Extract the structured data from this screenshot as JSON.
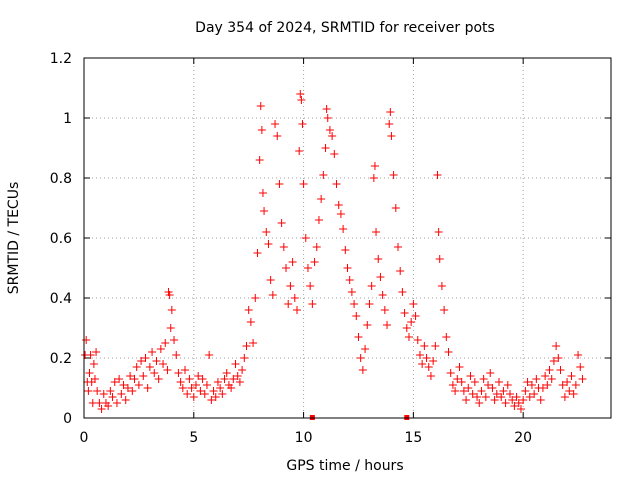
{
  "chart_data": {
    "type": "scatter",
    "title": "Day 354 of 2024, SRMTID for receiver pots",
    "xlabel": "GPS time / hours",
    "ylabel": "SRMTID / TECUs",
    "xlim": [
      0,
      24
    ],
    "ylim": [
      0,
      1.2
    ],
    "x_ticks": [
      0,
      5,
      10,
      15,
      20
    ],
    "x_tick_labels": [
      "0",
      "5",
      "10",
      "15",
      "20"
    ],
    "y_ticks": [
      0,
      0.2,
      0.4,
      0.6,
      0.8,
      1.0,
      1.2
    ],
    "y_tick_labels": [
      "0",
      "0.2",
      "0.4",
      "0.6",
      "0.8",
      "1",
      "1.2"
    ],
    "grid": true,
    "marker": "+",
    "series": [
      {
        "name": "SRMTID",
        "color": "#ff0000",
        "points": [
          [
            0.05,
            0.21
          ],
          [
            0.1,
            0.26
          ],
          [
            0.15,
            0.12
          ],
          [
            0.2,
            0.09
          ],
          [
            0.25,
            0.15
          ],
          [
            0.3,
            0.21
          ],
          [
            0.35,
            0.12
          ],
          [
            0.4,
            0.05
          ],
          [
            0.45,
            0.18
          ],
          [
            0.5,
            0.13
          ],
          [
            0.55,
            0.22
          ],
          [
            0.6,
            0.09
          ],
          [
            0.7,
            0.05
          ],
          [
            0.8,
            0.03
          ],
          [
            0.9,
            0.08
          ],
          [
            1.0,
            0.05
          ],
          [
            1.1,
            0.04
          ],
          [
            1.2,
            0.09
          ],
          [
            1.3,
            0.07
          ],
          [
            1.4,
            0.12
          ],
          [
            1.5,
            0.05
          ],
          [
            1.6,
            0.13
          ],
          [
            1.7,
            0.08
          ],
          [
            1.8,
            0.11
          ],
          [
            1.9,
            0.06
          ],
          [
            2.0,
            0.1
          ],
          [
            2.1,
            0.14
          ],
          [
            2.2,
            0.09
          ],
          [
            2.3,
            0.13
          ],
          [
            2.4,
            0.17
          ],
          [
            2.5,
            0.11
          ],
          [
            2.6,
            0.19
          ],
          [
            2.7,
            0.14
          ],
          [
            2.8,
            0.2
          ],
          [
            2.9,
            0.1
          ],
          [
            3.0,
            0.17
          ],
          [
            3.1,
            0.22
          ],
          [
            3.2,
            0.15
          ],
          [
            3.3,
            0.19
          ],
          [
            3.4,
            0.13
          ],
          [
            3.5,
            0.23
          ],
          [
            3.6,
            0.18
          ],
          [
            3.7,
            0.25
          ],
          [
            3.8,
            0.16
          ],
          [
            3.85,
            0.42
          ],
          [
            3.9,
            0.41
          ],
          [
            3.95,
            0.3
          ],
          [
            4.0,
            0.36
          ],
          [
            4.1,
            0.26
          ],
          [
            4.2,
            0.21
          ],
          [
            4.3,
            0.15
          ],
          [
            4.4,
            0.12
          ],
          [
            4.5,
            0.1
          ],
          [
            4.6,
            0.16
          ],
          [
            4.7,
            0.08
          ],
          [
            4.8,
            0.13
          ],
          [
            4.9,
            0.1
          ],
          [
            5.0,
            0.07
          ],
          [
            5.1,
            0.11
          ],
          [
            5.2,
            0.14
          ],
          [
            5.3,
            0.09
          ],
          [
            5.4,
            0.13
          ],
          [
            5.5,
            0.08
          ],
          [
            5.6,
            0.11
          ],
          [
            5.7,
            0.21
          ],
          [
            5.8,
            0.06
          ],
          [
            5.9,
            0.09
          ],
          [
            6.0,
            0.07
          ],
          [
            6.1,
            0.12
          ],
          [
            6.2,
            0.1
          ],
          [
            6.3,
            0.08
          ],
          [
            6.4,
            0.13
          ],
          [
            6.5,
            0.15
          ],
          [
            6.6,
            0.11
          ],
          [
            6.7,
            0.1
          ],
          [
            6.8,
            0.13
          ],
          [
            6.9,
            0.18
          ],
          [
            7.0,
            0.14
          ],
          [
            7.1,
            0.12
          ],
          [
            7.2,
            0.16
          ],
          [
            7.3,
            0.2
          ],
          [
            7.4,
            0.24
          ],
          [
            7.5,
            0.36
          ],
          [
            7.6,
            0.32
          ],
          [
            7.7,
            0.25
          ],
          [
            7.8,
            0.4
          ],
          [
            7.9,
            0.55
          ],
          [
            8.0,
            0.86
          ],
          [
            8.05,
            1.04
          ],
          [
            8.1,
            0.96
          ],
          [
            8.15,
            0.75
          ],
          [
            8.2,
            0.69
          ],
          [
            8.3,
            0.62
          ],
          [
            8.4,
            0.58
          ],
          [
            8.5,
            0.46
          ],
          [
            8.6,
            0.41
          ],
          [
            8.7,
            0.98
          ],
          [
            8.8,
            0.94
          ],
          [
            8.9,
            0.78
          ],
          [
            9.0,
            0.65
          ],
          [
            9.1,
            0.57
          ],
          [
            9.2,
            0.5
          ],
          [
            9.3,
            0.38
          ],
          [
            9.4,
            0.44
          ],
          [
            9.5,
            0.52
          ],
          [
            9.6,
            0.4
          ],
          [
            9.7,
            0.36
          ],
          [
            9.8,
            0.89
          ],
          [
            9.85,
            1.08
          ],
          [
            9.9,
            1.06
          ],
          [
            9.95,
            0.98
          ],
          [
            10.0,
            0.78
          ],
          [
            10.1,
            0.6
          ],
          [
            10.2,
            0.5
          ],
          [
            10.3,
            0.44
          ],
          [
            10.4,
            0.38
          ],
          [
            10.5,
            0.52
          ],
          [
            10.6,
            0.57
          ],
          [
            10.7,
            0.66
          ],
          [
            10.8,
            0.73
          ],
          [
            10.9,
            0.81
          ],
          [
            11.0,
            0.9
          ],
          [
            11.05,
            1.03
          ],
          [
            11.1,
            1.0
          ],
          [
            11.2,
            0.96
          ],
          [
            11.3,
            0.94
          ],
          [
            11.4,
            0.88
          ],
          [
            11.5,
            0.78
          ],
          [
            11.6,
            0.71
          ],
          [
            11.7,
            0.68
          ],
          [
            11.8,
            0.63
          ],
          [
            11.9,
            0.56
          ],
          [
            12.0,
            0.5
          ],
          [
            12.1,
            0.46
          ],
          [
            12.2,
            0.42
          ],
          [
            12.3,
            0.38
          ],
          [
            12.4,
            0.34
          ],
          [
            12.5,
            0.27
          ],
          [
            12.6,
            0.2
          ],
          [
            12.7,
            0.16
          ],
          [
            12.8,
            0.23
          ],
          [
            12.9,
            0.31
          ],
          [
            13.0,
            0.38
          ],
          [
            13.1,
            0.44
          ],
          [
            13.2,
            0.8
          ],
          [
            13.25,
            0.84
          ],
          [
            13.3,
            0.62
          ],
          [
            13.4,
            0.53
          ],
          [
            13.5,
            0.47
          ],
          [
            13.6,
            0.41
          ],
          [
            13.7,
            0.36
          ],
          [
            13.8,
            0.31
          ],
          [
            13.9,
            0.98
          ],
          [
            13.95,
            1.02
          ],
          [
            14.0,
            0.94
          ],
          [
            14.1,
            0.81
          ],
          [
            14.2,
            0.7
          ],
          [
            14.3,
            0.57
          ],
          [
            14.4,
            0.49
          ],
          [
            14.5,
            0.42
          ],
          [
            14.6,
            0.35
          ],
          [
            14.7,
            0.3
          ],
          [
            14.8,
            0.27
          ],
          [
            14.9,
            0.32
          ],
          [
            15.0,
            0.38
          ],
          [
            15.1,
            0.34
          ],
          [
            15.2,
            0.26
          ],
          [
            15.3,
            0.21
          ],
          [
            15.4,
            0.18
          ],
          [
            15.5,
            0.24
          ],
          [
            15.6,
            0.2
          ],
          [
            15.7,
            0.17
          ],
          [
            15.8,
            0.14
          ],
          [
            15.9,
            0.19
          ],
          [
            16.0,
            0.24
          ],
          [
            16.1,
            0.81
          ],
          [
            16.15,
            0.62
          ],
          [
            16.2,
            0.53
          ],
          [
            16.3,
            0.44
          ],
          [
            16.4,
            0.36
          ],
          [
            16.5,
            0.27
          ],
          [
            16.6,
            0.22
          ],
          [
            16.7,
            0.15
          ],
          [
            16.8,
            0.11
          ],
          [
            16.9,
            0.09
          ],
          [
            17.0,
            0.13
          ],
          [
            17.1,
            0.17
          ],
          [
            17.2,
            0.12
          ],
          [
            17.3,
            0.09
          ],
          [
            17.4,
            0.06
          ],
          [
            17.5,
            0.1
          ],
          [
            17.6,
            0.14
          ],
          [
            17.7,
            0.08
          ],
          [
            17.8,
            0.12
          ],
          [
            17.9,
            0.07
          ],
          [
            18.0,
            0.05
          ],
          [
            18.1,
            0.09
          ],
          [
            18.2,
            0.13
          ],
          [
            18.3,
            0.07
          ],
          [
            18.4,
            0.11
          ],
          [
            18.5,
            0.15
          ],
          [
            18.6,
            0.1
          ],
          [
            18.7,
            0.06
          ],
          [
            18.8,
            0.08
          ],
          [
            18.9,
            0.12
          ],
          [
            19.0,
            0.07
          ],
          [
            19.1,
            0.09
          ],
          [
            19.2,
            0.05
          ],
          [
            19.3,
            0.11
          ],
          [
            19.4,
            0.08
          ],
          [
            19.5,
            0.06
          ],
          [
            19.6,
            0.04
          ],
          [
            19.7,
            0.07
          ],
          [
            19.8,
            0.05
          ],
          [
            19.9,
            0.03
          ],
          [
            20.0,
            0.06
          ],
          [
            20.1,
            0.09
          ],
          [
            20.2,
            0.12
          ],
          [
            20.3,
            0.07
          ],
          [
            20.4,
            0.11
          ],
          [
            20.5,
            0.08
          ],
          [
            20.6,
            0.13
          ],
          [
            20.7,
            0.1
          ],
          [
            20.8,
            0.06
          ],
          [
            20.9,
            0.1
          ],
          [
            21.0,
            0.14
          ],
          [
            21.1,
            0.11
          ],
          [
            21.2,
            0.16
          ],
          [
            21.3,
            0.13
          ],
          [
            21.4,
            0.19
          ],
          [
            21.5,
            0.24
          ],
          [
            21.6,
            0.2
          ],
          [
            21.7,
            0.16
          ],
          [
            21.8,
            0.11
          ],
          [
            21.9,
            0.07
          ],
          [
            22.0,
            0.12
          ],
          [
            22.1,
            0.09
          ],
          [
            22.2,
            0.14
          ],
          [
            22.3,
            0.08
          ],
          [
            22.4,
            0.11
          ],
          [
            22.5,
            0.21
          ],
          [
            22.6,
            0.17
          ],
          [
            22.7,
            0.13
          ]
        ]
      }
    ],
    "axis_markers": [
      10.4,
      14.7
    ]
  }
}
